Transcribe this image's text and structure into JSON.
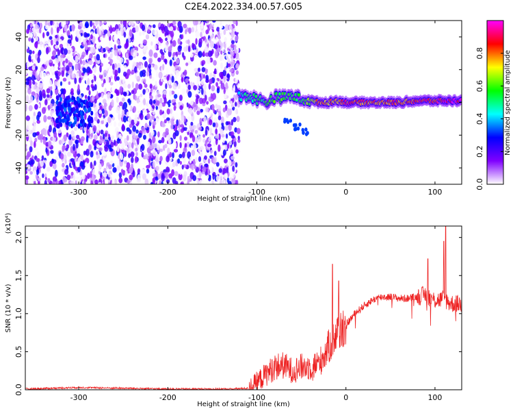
{
  "page": {
    "title": "C2E4.2022.334.00.57.G05"
  },
  "chart_data": [
    {
      "type": "heatmap",
      "xlabel": "Height of straight line (km)",
      "ylabel": "Frequency (Hz)",
      "xlim": [
        -360,
        130
      ],
      "ylim": [
        -50,
        50
      ],
      "x_ticks": [
        -300,
        -200,
        -100,
        0,
        100
      ],
      "y_ticks": [
        -40,
        -20,
        0,
        20,
        40
      ],
      "colorbar": {
        "label": "Normalized spectral amplitude",
        "range": [
          0.0,
          1.0
        ],
        "ticks": [
          0.0,
          0.2,
          0.4,
          0.6,
          0.8
        ],
        "colormap": [
          "#ffffff",
          "#8000ff",
          "#0000ff",
          "#00ffff",
          "#00ff00",
          "#ffff00",
          "#ff0000",
          "#ff00ff"
        ]
      },
      "features": {
        "noise_region_x": [
          -360,
          -120
        ],
        "noise_amplitude": 0.3,
        "noise_hotspot": {
          "x": -305,
          "y": -6,
          "amplitude": 0.35
        },
        "signal_ridge": [
          {
            "x": -120,
            "y": 4,
            "amplitude": 0.45
          },
          {
            "x": -110,
            "y": 4,
            "amplitude": 0.5
          },
          {
            "x": -100,
            "y": 2,
            "amplitude": 0.55
          },
          {
            "x": -90,
            "y": 0,
            "amplitude": 0.55
          },
          {
            "x": -80,
            "y": 3,
            "amplitude": 0.6
          },
          {
            "x": -70,
            "y": 3,
            "amplitude": 0.6
          },
          {
            "x": -60,
            "y": 4,
            "amplitude": 0.55
          },
          {
            "x": -50,
            "y": 2,
            "amplitude": 0.6
          },
          {
            "x": -40,
            "y": 1,
            "amplitude": 0.65
          },
          {
            "x": -30,
            "y": 0,
            "amplitude": 0.85
          },
          {
            "x": -20,
            "y": 0,
            "amplitude": 0.8
          },
          {
            "x": -10,
            "y": 1,
            "amplitude": 0.8
          },
          {
            "x": 0,
            "y": 0,
            "amplitude": 0.9
          },
          {
            "x": 20,
            "y": 0,
            "amplitude": 0.85
          },
          {
            "x": 40,
            "y": 0,
            "amplitude": 0.85
          },
          {
            "x": 60,
            "y": 0,
            "amplitude": 0.85
          },
          {
            "x": 80,
            "y": 1,
            "amplitude": 0.9
          },
          {
            "x": 100,
            "y": 1,
            "amplitude": 0.9
          },
          {
            "x": 115,
            "y": 1,
            "amplitude": 1.0
          },
          {
            "x": 130,
            "y": 1,
            "amplitude": 1.0
          }
        ],
        "secondary_branch": [
          {
            "x": -65,
            "y": -12,
            "amplitude": 0.32
          },
          {
            "x": -55,
            "y": -15,
            "amplitude": 0.32
          },
          {
            "x": -45,
            "y": -18,
            "amplitude": 0.32
          }
        ]
      }
    },
    {
      "type": "line",
      "xlabel": "Height of straight line (km)",
      "ylabel": "SNR (10 * v/v)",
      "y_scale_label": "(x10⁴)",
      "xlim": [
        -360,
        130
      ],
      "ylim": [
        0,
        2.15
      ],
      "x_ticks": [
        -300,
        -200,
        -100,
        0,
        100
      ],
      "y_ticks": [
        0.0,
        0.5,
        1.0,
        1.5,
        2.0
      ],
      "y_tick_labels": [
        "0.0",
        "0.5",
        "1.0",
        "1.5",
        "2.0"
      ],
      "series": [
        {
          "color": "#ee2222",
          "x": [
            -360,
            -300,
            -200,
            -130,
            -110,
            -100,
            -90,
            -80,
            -70,
            -60,
            -50,
            -40,
            -30,
            -20,
            -10,
            0,
            10,
            20,
            30,
            40,
            50,
            60,
            70,
            80,
            90,
            95,
            100,
            105,
            110,
            115,
            120,
            130
          ],
          "y": [
            0.01,
            0.03,
            0.01,
            0.01,
            0.02,
            0.1,
            0.2,
            0.3,
            0.32,
            0.25,
            0.3,
            0.3,
            0.35,
            0.55,
            0.75,
            0.85,
            1.0,
            1.1,
            1.18,
            1.22,
            1.22,
            1.2,
            1.2,
            1.22,
            1.25,
            1.2,
            1.18,
            1.18,
            1.2,
            1.15,
            1.13,
            1.13
          ]
        }
      ],
      "spikes": [
        {
          "x": -15,
          "y": 1.65
        },
        {
          "x": -8,
          "y": 1.43
        },
        {
          "x": 92,
          "y": 1.72
        },
        {
          "x": 110,
          "y": 1.95
        },
        {
          "x": 112,
          "y": 2.15
        }
      ]
    }
  ]
}
